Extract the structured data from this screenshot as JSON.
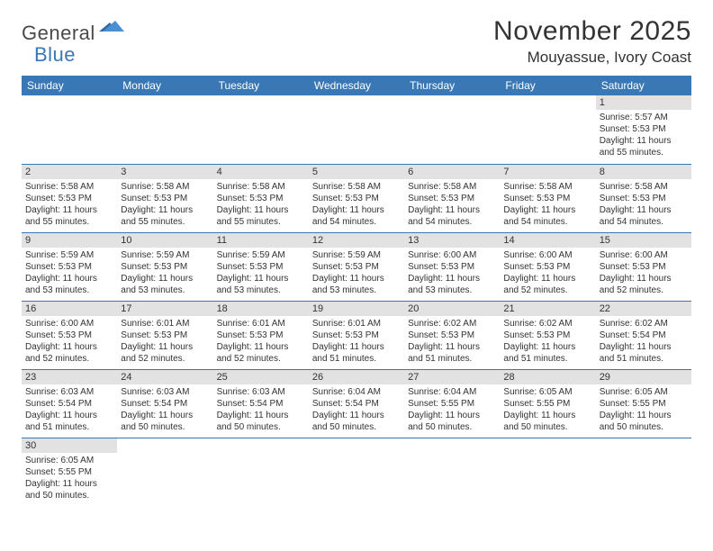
{
  "logo": {
    "part1": "General",
    "part2": "Blue"
  },
  "title": "November 2025",
  "location": "Mouyassue, Ivory Coast",
  "colors": {
    "header_bg": "#3a78b5",
    "header_text": "#ffffff",
    "daynum_bg": "#e2e2e2",
    "border": "#3a78b5",
    "text": "#333333",
    "logo_gray": "#4a4a4a",
    "logo_blue": "#3a78b5"
  },
  "day_headers": [
    "Sunday",
    "Monday",
    "Tuesday",
    "Wednesday",
    "Thursday",
    "Friday",
    "Saturday"
  ],
  "weeks": [
    [
      null,
      null,
      null,
      null,
      null,
      null,
      {
        "n": "1",
        "sunrise": "5:57 AM",
        "sunset": "5:53 PM",
        "daylight": "11 hours and 55 minutes."
      }
    ],
    [
      {
        "n": "2",
        "sunrise": "5:58 AM",
        "sunset": "5:53 PM",
        "daylight": "11 hours and 55 minutes."
      },
      {
        "n": "3",
        "sunrise": "5:58 AM",
        "sunset": "5:53 PM",
        "daylight": "11 hours and 55 minutes."
      },
      {
        "n": "4",
        "sunrise": "5:58 AM",
        "sunset": "5:53 PM",
        "daylight": "11 hours and 55 minutes."
      },
      {
        "n": "5",
        "sunrise": "5:58 AM",
        "sunset": "5:53 PM",
        "daylight": "11 hours and 54 minutes."
      },
      {
        "n": "6",
        "sunrise": "5:58 AM",
        "sunset": "5:53 PM",
        "daylight": "11 hours and 54 minutes."
      },
      {
        "n": "7",
        "sunrise": "5:58 AM",
        "sunset": "5:53 PM",
        "daylight": "11 hours and 54 minutes."
      },
      {
        "n": "8",
        "sunrise": "5:58 AM",
        "sunset": "5:53 PM",
        "daylight": "11 hours and 54 minutes."
      }
    ],
    [
      {
        "n": "9",
        "sunrise": "5:59 AM",
        "sunset": "5:53 PM",
        "daylight": "11 hours and 53 minutes."
      },
      {
        "n": "10",
        "sunrise": "5:59 AM",
        "sunset": "5:53 PM",
        "daylight": "11 hours and 53 minutes."
      },
      {
        "n": "11",
        "sunrise": "5:59 AM",
        "sunset": "5:53 PM",
        "daylight": "11 hours and 53 minutes."
      },
      {
        "n": "12",
        "sunrise": "5:59 AM",
        "sunset": "5:53 PM",
        "daylight": "11 hours and 53 minutes."
      },
      {
        "n": "13",
        "sunrise": "6:00 AM",
        "sunset": "5:53 PM",
        "daylight": "11 hours and 53 minutes."
      },
      {
        "n": "14",
        "sunrise": "6:00 AM",
        "sunset": "5:53 PM",
        "daylight": "11 hours and 52 minutes."
      },
      {
        "n": "15",
        "sunrise": "6:00 AM",
        "sunset": "5:53 PM",
        "daylight": "11 hours and 52 minutes."
      }
    ],
    [
      {
        "n": "16",
        "sunrise": "6:00 AM",
        "sunset": "5:53 PM",
        "daylight": "11 hours and 52 minutes."
      },
      {
        "n": "17",
        "sunrise": "6:01 AM",
        "sunset": "5:53 PM",
        "daylight": "11 hours and 52 minutes."
      },
      {
        "n": "18",
        "sunrise": "6:01 AM",
        "sunset": "5:53 PM",
        "daylight": "11 hours and 52 minutes."
      },
      {
        "n": "19",
        "sunrise": "6:01 AM",
        "sunset": "5:53 PM",
        "daylight": "11 hours and 51 minutes."
      },
      {
        "n": "20",
        "sunrise": "6:02 AM",
        "sunset": "5:53 PM",
        "daylight": "11 hours and 51 minutes."
      },
      {
        "n": "21",
        "sunrise": "6:02 AM",
        "sunset": "5:53 PM",
        "daylight": "11 hours and 51 minutes."
      },
      {
        "n": "22",
        "sunrise": "6:02 AM",
        "sunset": "5:54 PM",
        "daylight": "11 hours and 51 minutes."
      }
    ],
    [
      {
        "n": "23",
        "sunrise": "6:03 AM",
        "sunset": "5:54 PM",
        "daylight": "11 hours and 51 minutes."
      },
      {
        "n": "24",
        "sunrise": "6:03 AM",
        "sunset": "5:54 PM",
        "daylight": "11 hours and 50 minutes."
      },
      {
        "n": "25",
        "sunrise": "6:03 AM",
        "sunset": "5:54 PM",
        "daylight": "11 hours and 50 minutes."
      },
      {
        "n": "26",
        "sunrise": "6:04 AM",
        "sunset": "5:54 PM",
        "daylight": "11 hours and 50 minutes."
      },
      {
        "n": "27",
        "sunrise": "6:04 AM",
        "sunset": "5:55 PM",
        "daylight": "11 hours and 50 minutes."
      },
      {
        "n": "28",
        "sunrise": "6:05 AM",
        "sunset": "5:55 PM",
        "daylight": "11 hours and 50 minutes."
      },
      {
        "n": "29",
        "sunrise": "6:05 AM",
        "sunset": "5:55 PM",
        "daylight": "11 hours and 50 minutes."
      }
    ],
    [
      {
        "n": "30",
        "sunrise": "6:05 AM",
        "sunset": "5:55 PM",
        "daylight": "11 hours and 50 minutes."
      },
      null,
      null,
      null,
      null,
      null,
      null
    ]
  ],
  "labels": {
    "sunrise": "Sunrise: ",
    "sunset": "Sunset: ",
    "daylight": "Daylight: "
  }
}
